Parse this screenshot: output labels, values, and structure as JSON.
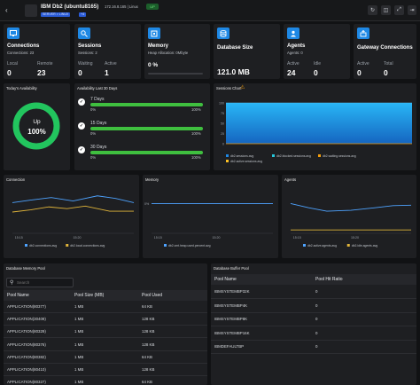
{
  "header": {
    "title": "IBM Db2 (ubuntu8165)",
    "subtitle": "172.16.8.165 | Linux",
    "status": "UP",
    "tags": [
      "SERVER > LINUX",
      "+4"
    ],
    "accent": "#2a5bd7",
    "status_color": "#2fbf4a"
  },
  "summary_cards": [
    {
      "title": "Connections",
      "sub": "Connections: 23",
      "fields": [
        {
          "label": "Local",
          "value": "0"
        },
        {
          "label": "Remote",
          "value": "23"
        }
      ],
      "icon": "connections-icon"
    },
    {
      "title": "Sessions",
      "sub": "Sessions: 2",
      "fields": [
        {
          "label": "Waiting",
          "value": "0"
        },
        {
          "label": "Active",
          "value": "1"
        }
      ],
      "icon": "sessions-icon"
    },
    {
      "title": "Memory",
      "sub": "Heap Allocation: 0Mbyte",
      "fields": [
        {
          "label": "",
          "value": "0 %"
        }
      ],
      "icon": "memory-icon"
    },
    {
      "title": "Database Size",
      "sub": "",
      "fields": [
        {
          "label": "",
          "value": "121.0 MB"
        }
      ],
      "icon": "database-icon"
    },
    {
      "title": "Agents",
      "sub": "Agents: 0",
      "fields": [
        {
          "label": "Active",
          "value": "24"
        },
        {
          "label": "Idle",
          "value": "0"
        }
      ],
      "icon": "agents-icon"
    },
    {
      "title": "Gateway Connections",
      "sub": "",
      "fields": [
        {
          "label": "Active",
          "value": "0"
        },
        {
          "label": "Total",
          "value": "0"
        }
      ],
      "icon": "gateway-icon"
    }
  ],
  "availability": {
    "title": "Today's Availability",
    "state": "Up",
    "percent": "100%",
    "level": 1.0,
    "ring_color": "#22c55e"
  },
  "availability_last": {
    "title": "Availability Last 30 Days",
    "rows": [
      {
        "label": "7 Days",
        "from": "0%",
        "to": "100%",
        "fill": 1.0
      },
      {
        "label": "15 Days",
        "from": "0%",
        "to": "100%",
        "fill": 1.0
      },
      {
        "label": "30 Days",
        "from": "0%",
        "to": "100%",
        "fill": 1.0
      }
    ],
    "bar_color": "#3fbf3f"
  },
  "sessions_chart": {
    "title": "Sessions Chart",
    "yticks": [
      "100",
      "75",
      "50",
      "25",
      "0"
    ],
    "legend": [
      "db2.sessions.avg",
      "db2.blocked.sessions.avg",
      "db2.waiting.sessions.avg",
      "db2.active.sessions.avg"
    ],
    "colors": [
      "#1e88e5",
      "#26c6da",
      "#f59e0b",
      "#fbbf24"
    ]
  },
  "connection_chart": {
    "title": "Connection",
    "x": [
      "15:15",
      "15:20"
    ],
    "legend": [
      "db2.connections.avg",
      "db2.local.connections.avg"
    ],
    "colors": [
      "#4ea3ff",
      "#e0b43a"
    ]
  },
  "memory_chart": {
    "title": "Memory",
    "ylabel": "0%",
    "x": [
      "15:15",
      "15:20"
    ],
    "legend": [
      "db2.cmt.heap.used.percent.avg"
    ],
    "colors": [
      "#4ea3ff"
    ]
  },
  "agents_chart": {
    "title": "Agents",
    "x": [
      "15:15",
      "15:20"
    ],
    "legend": [
      "db2.active.agents.avg",
      "db2.idle.agents.avg"
    ],
    "colors": [
      "#4ea3ff",
      "#e0b43a"
    ]
  },
  "db_memory_pool": {
    "title": "Database Memory Pool",
    "search_placeholder": "Search",
    "columns": [
      "Pool Name",
      "Pool Size (MB)",
      "Pool Used"
    ],
    "rows": [
      [
        "APPLICATION(80377)",
        "1 MB",
        "64 KB"
      ],
      [
        "APPLICATION(30409)",
        "1 MB",
        "128 KB"
      ],
      [
        "APPLICATION(80329)",
        "1 MB",
        "128 KB"
      ],
      [
        "APPLICATION(80376)",
        "1 MB",
        "128 KB"
      ],
      [
        "APPLICATION(80382)",
        "1 MB",
        "64 KB"
      ],
      [
        "APPLICATION(80410)",
        "1 MB",
        "128 KB"
      ],
      [
        "APPLICATION(80327)",
        "1 MB",
        "64 KB"
      ]
    ]
  },
  "db_buffer_pool": {
    "title": "Database Buffer Pool",
    "columns": [
      "Pool Name",
      "Pool Hit Ratio"
    ],
    "rows": [
      [
        "IBMSYSTEMBP32K",
        "0"
      ],
      [
        "IBMSYSTEMBP4K",
        "0"
      ],
      [
        "IBMSYSTEMBP8K",
        "0"
      ],
      [
        "IBMSYSTEMBP16K",
        "0"
      ],
      [
        "IBMDEFAULTBP",
        "0"
      ]
    ]
  }
}
